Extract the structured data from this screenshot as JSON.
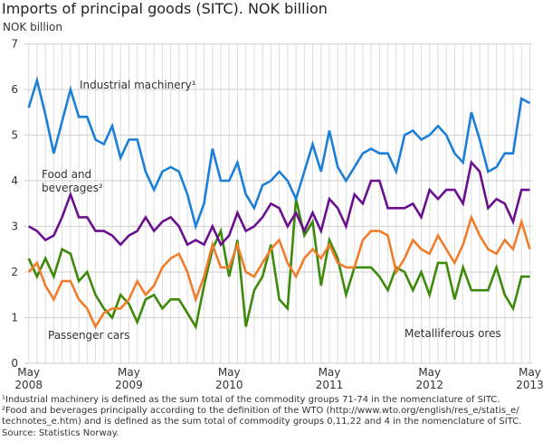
{
  "title": "Imports of principal goods (SITC). NOK billion",
  "footnotes": [
    "¹Industrial machinery is defined as the sum total of the commodity groups 71-74 in the nomenclature of SITC.",
    "²Food and beverages principally according to the definition of the WTO (http://www.wto.org/english/res_e/statis_e/",
    "technotes_e.htm) and is defined as the sum total of commodity groups 0,11,22 and 4 in the nomenclature of SITC.",
    "Source: Statistics Norway."
  ],
  "chart_data": {
    "type": "line",
    "title": "Imports of principal goods (SITC). NOK billion",
    "ylabel": "NOK billion",
    "xlabel": "",
    "ylim": [
      0,
      7
    ],
    "yticks": [
      0,
      1,
      2,
      3,
      4,
      5,
      6,
      7
    ],
    "grid": true,
    "x_start": "2008-05",
    "x_end": "2013-05",
    "x_frequency": "monthly",
    "xtick_labels": [
      {
        "month": "May",
        "year": "2008"
      },
      {
        "month": "May",
        "year": "2009"
      },
      {
        "month": "May",
        "year": "2010"
      },
      {
        "month": "May",
        "year": "2011"
      },
      {
        "month": "May",
        "year": "2012"
      },
      {
        "month": "May",
        "year": "2013"
      }
    ],
    "series": [
      {
        "name": "Industrial machinery¹",
        "color": "#1b7fd8",
        "values": [
          5.6,
          6.2,
          5.45,
          4.6,
          5.3,
          6.0,
          5.4,
          5.4,
          4.9,
          4.8,
          5.2,
          4.5,
          4.9,
          4.9,
          4.2,
          3.8,
          4.2,
          4.3,
          4.2,
          3.7,
          3.0,
          3.5,
          4.7,
          4.0,
          4.0,
          4.4,
          3.7,
          3.4,
          3.9,
          4.0,
          4.2,
          4.0,
          3.6,
          4.2,
          4.8,
          4.2,
          5.1,
          4.3,
          4.0,
          4.3,
          4.6,
          4.7,
          4.6,
          4.6,
          4.2,
          5.0,
          5.1,
          4.9,
          5.0,
          5.2,
          5.0,
          4.6,
          4.4,
          5.5,
          4.9,
          4.2,
          4.3,
          4.6,
          4.6,
          5.8,
          5.7
        ]
      },
      {
        "name": "Food and beverages²",
        "color": "#6a0f8e",
        "values": [
          3.0,
          2.9,
          2.7,
          2.8,
          3.2,
          3.7,
          3.2,
          3.2,
          2.9,
          2.9,
          2.8,
          2.6,
          2.8,
          2.9,
          3.2,
          2.9,
          3.1,
          3.2,
          3.0,
          2.6,
          2.7,
          2.6,
          3.0,
          2.6,
          2.8,
          3.3,
          2.9,
          3.0,
          3.2,
          3.5,
          3.4,
          3.0,
          3.3,
          2.9,
          3.3,
          2.9,
          3.6,
          3.4,
          3.0,
          3.7,
          3.5,
          4.0,
          4.0,
          3.4,
          3.4,
          3.4,
          3.5,
          3.2,
          3.8,
          3.6,
          3.8,
          3.8,
          3.5,
          4.4,
          4.2,
          3.4,
          3.6,
          3.5,
          3.1,
          3.8,
          3.8
        ]
      },
      {
        "name": "Passenger cars",
        "color": "#f07d2c",
        "values": [
          2.0,
          2.2,
          1.7,
          1.4,
          1.8,
          1.8,
          1.4,
          1.2,
          0.8,
          1.1,
          1.2,
          1.2,
          1.4,
          1.8,
          1.5,
          1.7,
          2.1,
          2.3,
          2.4,
          2.0,
          1.4,
          1.9,
          2.6,
          2.1,
          2.1,
          2.6,
          2.0,
          1.9,
          2.2,
          2.5,
          2.7,
          2.2,
          1.9,
          2.3,
          2.5,
          2.3,
          2.6,
          2.2,
          2.1,
          2.1,
          2.7,
          2.9,
          2.9,
          2.8,
          2.0,
          2.3,
          2.7,
          2.5,
          2.4,
          2.8,
          2.5,
          2.2,
          2.6,
          3.2,
          2.8,
          2.5,
          2.4,
          2.7,
          2.5,
          3.1,
          2.5
        ]
      },
      {
        "name": "Metalliferous ores",
        "color": "#3d8a0b",
        "values": [
          2.3,
          1.9,
          2.3,
          1.9,
          2.5,
          2.4,
          1.8,
          2.0,
          1.5,
          1.2,
          1.0,
          1.5,
          1.3,
          0.9,
          1.4,
          1.5,
          1.2,
          1.4,
          1.4,
          1.1,
          0.8,
          1.7,
          2.5,
          2.9,
          1.9,
          2.7,
          0.8,
          1.6,
          1.9,
          2.6,
          1.4,
          1.2,
          3.6,
          2.8,
          3.1,
          1.7,
          2.7,
          2.3,
          1.5,
          2.1,
          2.1,
          2.1,
          1.9,
          1.6,
          2.1,
          2.0,
          1.6,
          2.0,
          1.5,
          2.2,
          2.2,
          1.4,
          2.1,
          1.6,
          1.6,
          1.6,
          2.1,
          1.5,
          1.2,
          1.9,
          1.9
        ]
      }
    ]
  }
}
